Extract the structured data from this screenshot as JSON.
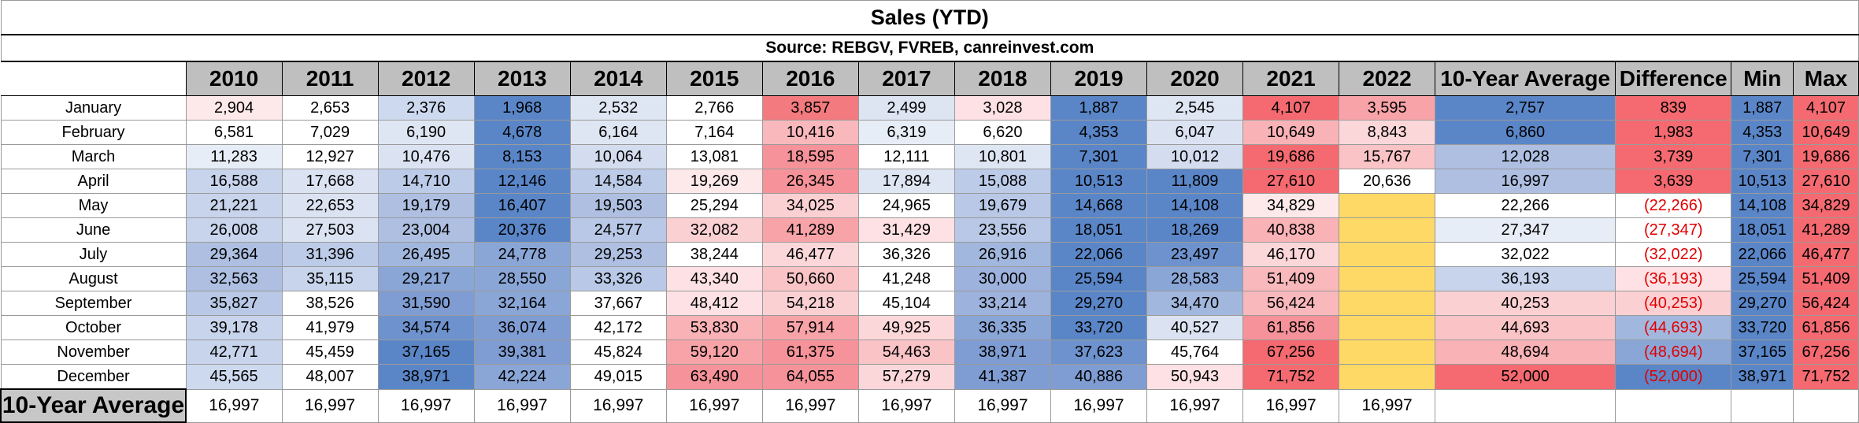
{
  "title": "Sales (YTD)",
  "source": "Source: REBGV, FVREB, canreinvest.com",
  "headers": [
    "2010",
    "2011",
    "2012",
    "2013",
    "2014",
    "2015",
    "2016",
    "2017",
    "2018",
    "2019",
    "2020",
    "2021",
    "2022",
    "10-Year Average",
    "Difference",
    "Min",
    "Max"
  ],
  "rows": [
    {
      "month": "January",
      "cells": [
        {
          "v": "2,904",
          "bg": "#fde8ea"
        },
        {
          "v": "2,653",
          "bg": "#ffffff"
        },
        {
          "v": "2,376",
          "bg": "#cdd9ee"
        },
        {
          "v": "1,968",
          "bg": "#5a86c8"
        },
        {
          "v": "2,532",
          "bg": "#dfe6f3"
        },
        {
          "v": "2,766",
          "bg": "#ffffff"
        },
        {
          "v": "3,857",
          "bg": "#f37a7e"
        },
        {
          "v": "2,499",
          "bg": "#dde5f2"
        },
        {
          "v": "3,028",
          "bg": "#fde1e4"
        },
        {
          "v": "1,887",
          "bg": "#5a86c8"
        },
        {
          "v": "2,545",
          "bg": "#dfe6f3"
        },
        {
          "v": "4,107",
          "bg": "#f46a70"
        },
        {
          "v": "3,595",
          "bg": "#f8a3a8"
        },
        {
          "v": "2,757",
          "bg": "#5a86c8"
        },
        {
          "v": "839",
          "bg": "#f46a70"
        },
        {
          "v": "1,887",
          "bg": "#5a86c8"
        },
        {
          "v": "4,107",
          "bg": "#f46a70"
        }
      ]
    },
    {
      "month": "February",
      "cells": [
        {
          "v": "6,581",
          "bg": "#ffffff"
        },
        {
          "v": "7,029",
          "bg": "#ffffff"
        },
        {
          "v": "6,190",
          "bg": "#dfe6f3"
        },
        {
          "v": "4,678",
          "bg": "#5a86c8"
        },
        {
          "v": "6,164",
          "bg": "#dfe6f3"
        },
        {
          "v": "7,164",
          "bg": "#ffffff"
        },
        {
          "v": "10,416",
          "bg": "#f9b8bc"
        },
        {
          "v": "6,319",
          "bg": "#e7edf6"
        },
        {
          "v": "6,620",
          "bg": "#ffffff"
        },
        {
          "v": "4,353",
          "bg": "#5a86c8"
        },
        {
          "v": "6,047",
          "bg": "#dbe3f2"
        },
        {
          "v": "10,649",
          "bg": "#f9b2b6"
        },
        {
          "v": "8,843",
          "bg": "#fcd7da"
        },
        {
          "v": "6,860",
          "bg": "#5a86c8"
        },
        {
          "v": "1,983",
          "bg": "#f46a70"
        },
        {
          "v": "4,353",
          "bg": "#5a86c8"
        },
        {
          "v": "10,649",
          "bg": "#f46a70"
        }
      ]
    },
    {
      "month": "March",
      "cells": [
        {
          "v": "11,283",
          "bg": "#e7edf6"
        },
        {
          "v": "12,927",
          "bg": "#ffffff"
        },
        {
          "v": "10,476",
          "bg": "#dbe3f2"
        },
        {
          "v": "8,153",
          "bg": "#5a86c8"
        },
        {
          "v": "10,064",
          "bg": "#d4ddf0"
        },
        {
          "v": "13,081",
          "bg": "#ffffff"
        },
        {
          "v": "18,595",
          "bg": "#f69299"
        },
        {
          "v": "12,111",
          "bg": "#ffffff"
        },
        {
          "v": "10,801",
          "bg": "#dfe6f3"
        },
        {
          "v": "7,301",
          "bg": "#5a86c8"
        },
        {
          "v": "10,012",
          "bg": "#d4ddf0"
        },
        {
          "v": "19,686",
          "bg": "#f46a70"
        },
        {
          "v": "15,767",
          "bg": "#fac3c6"
        },
        {
          "v": "12,028",
          "bg": "#aebfe2"
        },
        {
          "v": "3,739",
          "bg": "#f46a70"
        },
        {
          "v": "7,301",
          "bg": "#5a86c8"
        },
        {
          "v": "19,686",
          "bg": "#f46a70"
        }
      ]
    },
    {
      "month": "April",
      "cells": [
        {
          "v": "16,588",
          "bg": "#c7d4ec"
        },
        {
          "v": "17,668",
          "bg": "#dbe3f2"
        },
        {
          "v": "14,710",
          "bg": "#bccbe8"
        },
        {
          "v": "12,146",
          "bg": "#5a86c8"
        },
        {
          "v": "14,584",
          "bg": "#bccbe8"
        },
        {
          "v": "19,269",
          "bg": "#fde8ea"
        },
        {
          "v": "26,345",
          "bg": "#f69299"
        },
        {
          "v": "17,894",
          "bg": "#dfe6f3"
        },
        {
          "v": "15,088",
          "bg": "#bccbe8"
        },
        {
          "v": "10,513",
          "bg": "#5a86c8"
        },
        {
          "v": "11,809",
          "bg": "#5a86c8"
        },
        {
          "v": "27,610",
          "bg": "#f46a70"
        },
        {
          "v": "20,636",
          "bg": "#ffffff"
        },
        {
          "v": "16,997",
          "bg": "#aebfe2"
        },
        {
          "v": "3,639",
          "bg": "#f46a70"
        },
        {
          "v": "10,513",
          "bg": "#5a86c8"
        },
        {
          "v": "27,610",
          "bg": "#f46a70"
        }
      ]
    },
    {
      "month": "May",
      "cells": [
        {
          "v": "21,221",
          "bg": "#c7d4ec"
        },
        {
          "v": "22,653",
          "bg": "#dbe3f2"
        },
        {
          "v": "19,179",
          "bg": "#aebfe2"
        },
        {
          "v": "16,407",
          "bg": "#5a86c8"
        },
        {
          "v": "19,503",
          "bg": "#aebfe2"
        },
        {
          "v": "25,294",
          "bg": "#ffffff"
        },
        {
          "v": "34,025",
          "bg": "#fbd0d3"
        },
        {
          "v": "24,965",
          "bg": "#ffffff"
        },
        {
          "v": "19,679",
          "bg": "#b8c8e6"
        },
        {
          "v": "14,668",
          "bg": "#5a86c8"
        },
        {
          "v": "14,108",
          "bg": "#5a86c8"
        },
        {
          "v": "34,829",
          "bg": "#fde8ea"
        },
        {
          "v": "",
          "bg": "#ffd966"
        },
        {
          "v": "22,266",
          "bg": "#ffffff"
        },
        {
          "v": "(22,266)",
          "bg": "#ffffff",
          "neg": true
        },
        {
          "v": "14,108",
          "bg": "#5a86c8"
        },
        {
          "v": "34,829",
          "bg": "#f46a70"
        }
      ]
    },
    {
      "month": "June",
      "cells": [
        {
          "v": "26,008",
          "bg": "#c7d4ec"
        },
        {
          "v": "27,503",
          "bg": "#dbe3f2"
        },
        {
          "v": "23,004",
          "bg": "#aebfe2"
        },
        {
          "v": "20,376",
          "bg": "#5a86c8"
        },
        {
          "v": "24,577",
          "bg": "#b8c8e6"
        },
        {
          "v": "32,082",
          "bg": "#fbd0d3"
        },
        {
          "v": "41,289",
          "bg": "#f8a3a8"
        },
        {
          "v": "31,429",
          "bg": "#fde1e4"
        },
        {
          "v": "23,556",
          "bg": "#b8c8e6"
        },
        {
          "v": "18,051",
          "bg": "#5a86c8"
        },
        {
          "v": "18,269",
          "bg": "#5a86c8"
        },
        {
          "v": "40,838",
          "bg": "#f9b2b6"
        },
        {
          "v": "",
          "bg": "#ffd966"
        },
        {
          "v": "27,347",
          "bg": "#e7edf6"
        },
        {
          "v": "(27,347)",
          "bg": "#ffffff",
          "neg": true
        },
        {
          "v": "18,051",
          "bg": "#5a86c8"
        },
        {
          "v": "41,289",
          "bg": "#f46a70"
        }
      ]
    },
    {
      "month": "July",
      "cells": [
        {
          "v": "29,364",
          "bg": "#aebfe2"
        },
        {
          "v": "31,396",
          "bg": "#bccbe8"
        },
        {
          "v": "26,495",
          "bg": "#a2b7de"
        },
        {
          "v": "24,778",
          "bg": "#8aa6d7"
        },
        {
          "v": "29,253",
          "bg": "#aebfe2"
        },
        {
          "v": "38,244",
          "bg": "#ffffff"
        },
        {
          "v": "46,477",
          "bg": "#fcd7da"
        },
        {
          "v": "36,326",
          "bg": "#ffffff"
        },
        {
          "v": "26,916",
          "bg": "#a2b7de"
        },
        {
          "v": "22,066",
          "bg": "#5a86c8"
        },
        {
          "v": "23,497",
          "bg": "#6d92cd"
        },
        {
          "v": "46,170",
          "bg": "#fcd7da"
        },
        {
          "v": "",
          "bg": "#ffd966"
        },
        {
          "v": "32,022",
          "bg": "#ffffff"
        },
        {
          "v": "(32,022)",
          "bg": "#ffffff",
          "neg": true
        },
        {
          "v": "22,066",
          "bg": "#5a86c8"
        },
        {
          "v": "46,477",
          "bg": "#f46a70"
        }
      ]
    },
    {
      "month": "August",
      "cells": [
        {
          "v": "32,563",
          "bg": "#aebfe2"
        },
        {
          "v": "35,115",
          "bg": "#c7d4ec"
        },
        {
          "v": "29,217",
          "bg": "#8aa6d7"
        },
        {
          "v": "28,550",
          "bg": "#8aa6d7"
        },
        {
          "v": "33,326",
          "bg": "#b8c8e6"
        },
        {
          "v": "43,340",
          "bg": "#fde1e4"
        },
        {
          "v": "50,660",
          "bg": "#fac3c6"
        },
        {
          "v": "41,248",
          "bg": "#ffffff"
        },
        {
          "v": "30,000",
          "bg": "#9db2dc"
        },
        {
          "v": "25,594",
          "bg": "#5a86c8"
        },
        {
          "v": "28,583",
          "bg": "#8aa6d7"
        },
        {
          "v": "51,409",
          "bg": "#f9b8bc"
        },
        {
          "v": "",
          "bg": "#ffd966"
        },
        {
          "v": "36,193",
          "bg": "#c7d4ec"
        },
        {
          "v": "(36,193)",
          "bg": "#fde1e4",
          "neg": true
        },
        {
          "v": "25,594",
          "bg": "#5a86c8"
        },
        {
          "v": "51,409",
          "bg": "#f46a70"
        }
      ]
    },
    {
      "month": "September",
      "cells": [
        {
          "v": "35,827",
          "bg": "#b8c8e6"
        },
        {
          "v": "38,526",
          "bg": "#ffffff"
        },
        {
          "v": "31,590",
          "bg": "#7f9dd3"
        },
        {
          "v": "32,164",
          "bg": "#8aa6d7"
        },
        {
          "v": "37,667",
          "bg": "#ffffff"
        },
        {
          "v": "48,412",
          "bg": "#fde1e4"
        },
        {
          "v": "54,218",
          "bg": "#fbd0d3"
        },
        {
          "v": "45,104",
          "bg": "#ffffff"
        },
        {
          "v": "33,214",
          "bg": "#9db2dc"
        },
        {
          "v": "29,270",
          "bg": "#5a86c8"
        },
        {
          "v": "34,470",
          "bg": "#a2b7de"
        },
        {
          "v": "56,424",
          "bg": "#f9b8bc"
        },
        {
          "v": "",
          "bg": "#ffd966"
        },
        {
          "v": "40,253",
          "bg": "#fbd0d3"
        },
        {
          "v": "(40,253)",
          "bg": "#fbd0d3",
          "neg": true
        },
        {
          "v": "29,270",
          "bg": "#5a86c8"
        },
        {
          "v": "56,424",
          "bg": "#f46a70"
        }
      ]
    },
    {
      "month": "October",
      "cells": [
        {
          "v": "39,178",
          "bg": "#c7d4ec"
        },
        {
          "v": "41,979",
          "bg": "#ffffff"
        },
        {
          "v": "34,574",
          "bg": "#6d92cd"
        },
        {
          "v": "36,074",
          "bg": "#7f9dd3"
        },
        {
          "v": "42,172",
          "bg": "#ffffff"
        },
        {
          "v": "53,830",
          "bg": "#f9b2b6"
        },
        {
          "v": "57,914",
          "bg": "#f8a3a8"
        },
        {
          "v": "49,925",
          "bg": "#fcd7da"
        },
        {
          "v": "36,335",
          "bg": "#8aa6d7"
        },
        {
          "v": "33,720",
          "bg": "#5a86c8"
        },
        {
          "v": "40,527",
          "bg": "#dbe3f2"
        },
        {
          "v": "61,856",
          "bg": "#f69299"
        },
        {
          "v": "",
          "bg": "#ffd966"
        },
        {
          "v": "44,693",
          "bg": "#fac3c6"
        },
        {
          "v": "(44,693)",
          "bg": "#a2b7de",
          "neg": true
        },
        {
          "v": "33,720",
          "bg": "#5a86c8"
        },
        {
          "v": "61,856",
          "bg": "#f46a70"
        }
      ]
    },
    {
      "month": "November",
      "cells": [
        {
          "v": "42,771",
          "bg": "#c7d4ec"
        },
        {
          "v": "45,459",
          "bg": "#ffffff"
        },
        {
          "v": "37,165",
          "bg": "#5a86c8"
        },
        {
          "v": "39,381",
          "bg": "#7f9dd3"
        },
        {
          "v": "45,824",
          "bg": "#ffffff"
        },
        {
          "v": "59,120",
          "bg": "#f8a3a8"
        },
        {
          "v": "61,375",
          "bg": "#f69299"
        },
        {
          "v": "54,463",
          "bg": "#fac3c6"
        },
        {
          "v": "38,971",
          "bg": "#7f9dd3"
        },
        {
          "v": "37,623",
          "bg": "#6d92cd"
        },
        {
          "v": "45,764",
          "bg": "#ffffff"
        },
        {
          "v": "67,256",
          "bg": "#f46a70"
        },
        {
          "v": "",
          "bg": "#ffd966"
        },
        {
          "v": "48,694",
          "bg": "#f9b2b6"
        },
        {
          "v": "(48,694)",
          "bg": "#8aa6d7",
          "neg": true
        },
        {
          "v": "37,165",
          "bg": "#5a86c8"
        },
        {
          "v": "67,256",
          "bg": "#f46a70"
        }
      ]
    },
    {
      "month": "December",
      "cells": [
        {
          "v": "45,565",
          "bg": "#cdd9ee"
        },
        {
          "v": "48,007",
          "bg": "#ffffff"
        },
        {
          "v": "38,971",
          "bg": "#5a86c8"
        },
        {
          "v": "42,224",
          "bg": "#8aa6d7"
        },
        {
          "v": "49,015",
          "bg": "#ffffff"
        },
        {
          "v": "63,490",
          "bg": "#f69299"
        },
        {
          "v": "64,055",
          "bg": "#f69299"
        },
        {
          "v": "57,279",
          "bg": "#fcd7da"
        },
        {
          "v": "41,387",
          "bg": "#7f9dd3"
        },
        {
          "v": "40,886",
          "bg": "#7f9dd3"
        },
        {
          "v": "50,943",
          "bg": "#fde1e4"
        },
        {
          "v": "71,752",
          "bg": "#f46a70"
        },
        {
          "v": "",
          "bg": "#ffd966"
        },
        {
          "v": "52,000",
          "bg": "#f46a70"
        },
        {
          "v": "(52,000)",
          "bg": "#5a86c8",
          "neg": true
        },
        {
          "v": "38,971",
          "bg": "#5a86c8"
        },
        {
          "v": "71,752",
          "bg": "#f46a70"
        }
      ]
    }
  ],
  "average_row": {
    "label": "10-Year Average",
    "values": [
      "16,997",
      "16,997",
      "16,997",
      "16,997",
      "16,997",
      "16,997",
      "16,997",
      "16,997",
      "16,997",
      "16,997",
      "16,997",
      "16,997",
      "16,997",
      "",
      "",
      "",
      ""
    ]
  }
}
